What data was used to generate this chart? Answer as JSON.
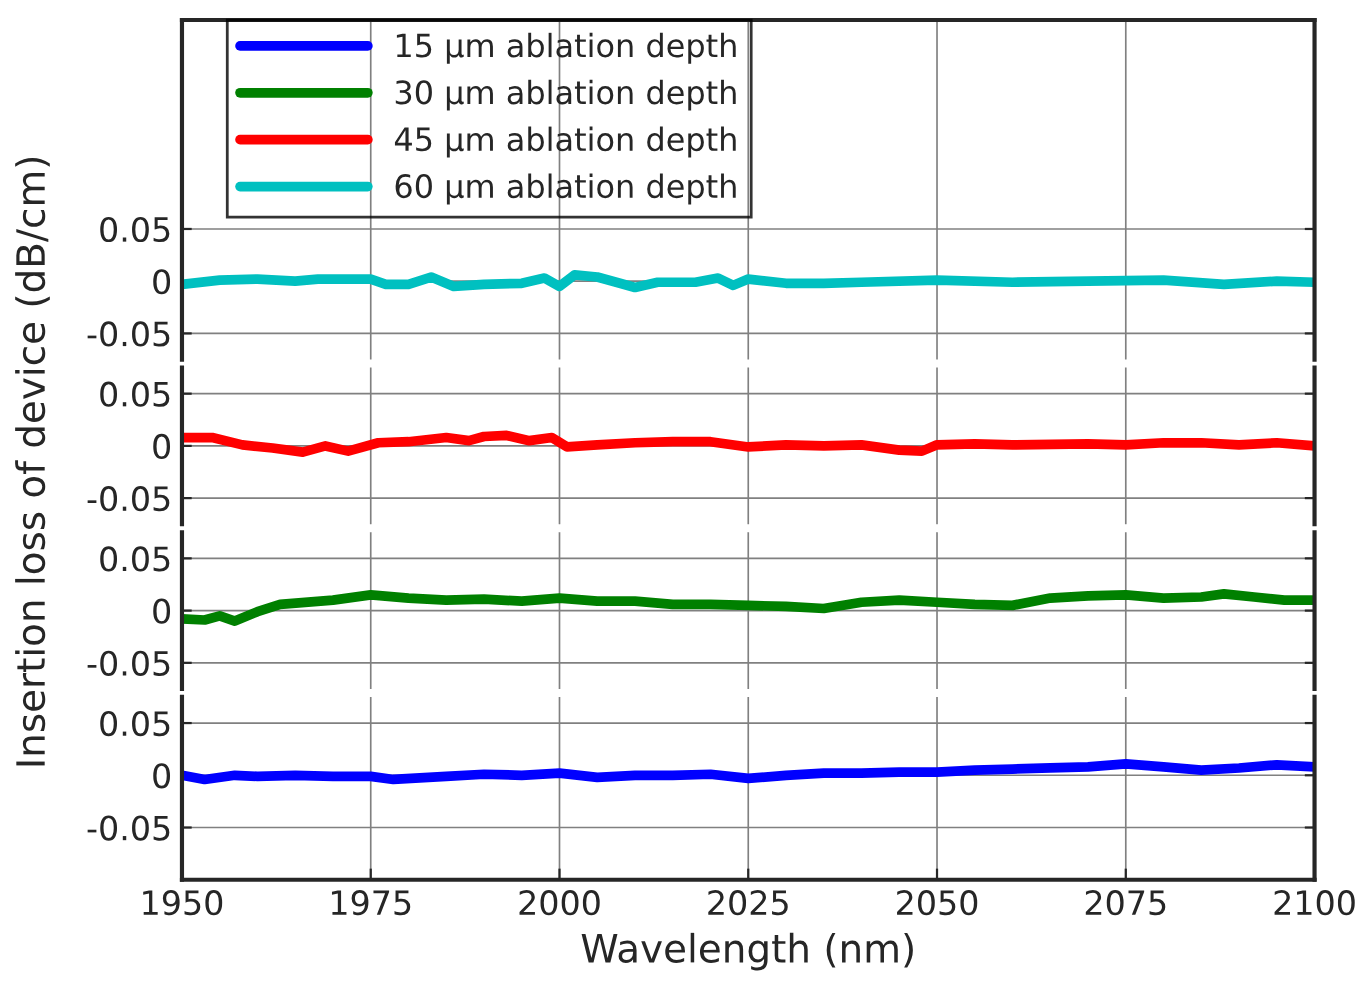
{
  "chart_data": [
    {
      "type": "line",
      "ylabel": "Insertion loss of device (dB/cm)",
      "xlim": [
        1950,
        2100
      ],
      "xticks": [
        1950,
        1975,
        2000,
        2025,
        2050,
        2075,
        2100
      ],
      "ylim": [
        -0.075,
        0.25
      ],
      "yticks": [
        -0.05,
        0,
        0.05
      ],
      "grid": true,
      "legend": "top left",
      "tick_labels": "y",
      "series": [
        {
          "name": "60 μm ablation depth",
          "color": "#00c0c0",
          "x": [
            1950,
            1955,
            1960,
            1965,
            1968,
            1975,
            1977,
            1980,
            1983,
            1986,
            1990,
            1995,
            1998,
            2000,
            2002,
            2005,
            2008,
            2010,
            2013,
            2018,
            2021,
            2023,
            2025,
            2030,
            2035,
            2040,
            2050,
            2060,
            2070,
            2080,
            2088,
            2095,
            2100
          ],
          "values": [
            -0.003,
            0.001,
            0.002,
            0,
            0.002,
            0.002,
            -0.003,
            -0.003,
            0.004,
            -0.005,
            -0.003,
            -0.002,
            0.003,
            -0.005,
            0.006,
            0.004,
            -0.002,
            -0.006,
            -0.001,
            -0.001,
            0.003,
            -0.004,
            0.002,
            -0.002,
            -0.002,
            -0.001,
            0.001,
            -0.001,
            0,
            0.001,
            -0.003,
            0,
            -0.001
          ]
        }
      ]
    },
    {
      "type": "line",
      "xlim": [
        1950,
        2100
      ],
      "xticks": [
        1950,
        1975,
        2000,
        2025,
        2050,
        2075,
        2100
      ],
      "ylim": [
        -0.075,
        0.075
      ],
      "yticks": [
        -0.05,
        0,
        0.05
      ],
      "grid": true,
      "tick_labels": "y",
      "series": [
        {
          "name": "45 μm ablation depth",
          "color": "#ff0000",
          "x": [
            1950,
            1954,
            1958,
            1962,
            1966,
            1969,
            1972,
            1976,
            1980,
            1985,
            1988,
            1990,
            1993,
            1996,
            1999,
            2001,
            2005,
            2010,
            2015,
            2020,
            2025,
            2030,
            2035,
            2040,
            2045,
            2048,
            2050,
            2055,
            2060,
            2070,
            2075,
            2080,
            2085,
            2090,
            2095,
            2100
          ],
          "values": [
            0.008,
            0.008,
            0.001,
            -0.002,
            -0.006,
            0,
            -0.005,
            0.003,
            0.004,
            0.008,
            0.005,
            0.009,
            0.01,
            0.005,
            0.008,
            -0.001,
            0.001,
            0.003,
            0.004,
            0.004,
            -0.001,
            0.001,
            0,
            0.001,
            -0.004,
            -0.005,
            0.001,
            0.002,
            0.001,
            0.002,
            0.001,
            0.003,
            0.003,
            0.001,
            0.003,
            0
          ]
        }
      ]
    },
    {
      "type": "line",
      "xlim": [
        1950,
        2100
      ],
      "xticks": [
        1950,
        1975,
        2000,
        2025,
        2050,
        2075,
        2100
      ],
      "ylim": [
        -0.075,
        0.075
      ],
      "yticks": [
        -0.05,
        0,
        0.05
      ],
      "grid": true,
      "tick_labels": "y",
      "series": [
        {
          "name": "30 μm ablation depth",
          "color": "#008000",
          "x": [
            1950,
            1953,
            1955,
            1957,
            1960,
            1963,
            1970,
            1975,
            1980,
            1985,
            1990,
            1995,
            2000,
            2005,
            2010,
            2015,
            2020,
            2025,
            2030,
            2035,
            2040,
            2045,
            2050,
            2055,
            2060,
            2065,
            2070,
            2075,
            2080,
            2085,
            2088,
            2092,
            2096,
            2100
          ],
          "values": [
            -0.008,
            -0.009,
            -0.005,
            -0.01,
            -0.001,
            0.006,
            0.01,
            0.015,
            0.012,
            0.01,
            0.011,
            0.009,
            0.012,
            0.009,
            0.009,
            0.006,
            0.006,
            0.005,
            0.004,
            0.002,
            0.008,
            0.01,
            0.008,
            0.006,
            0.005,
            0.012,
            0.014,
            0.015,
            0.012,
            0.013,
            0.016,
            0.013,
            0.01,
            0.01
          ]
        }
      ]
    },
    {
      "type": "line",
      "xlabel": "Wavelength (nm)",
      "xlim": [
        1950,
        2100
      ],
      "xticks": [
        1950,
        1975,
        2000,
        2025,
        2050,
        2075,
        2100
      ],
      "ylim": [
        -0.1,
        0.075
      ],
      "yticks": [
        -0.05,
        0,
        0.05
      ],
      "grid": true,
      "series": [
        {
          "name": "15 μm ablation depth",
          "color": "#0000ff",
          "x": [
            1950,
            1953,
            1957,
            1960,
            1965,
            1970,
            1975,
            1978,
            1985,
            1990,
            1995,
            2000,
            2005,
            2010,
            2015,
            2020,
            2025,
            2030,
            2035,
            2040,
            2045,
            2050,
            2055,
            2060,
            2065,
            2070,
            2075,
            2080,
            2085,
            2090,
            2095,
            2100
          ],
          "values": [
            0,
            -0.004,
            0,
            -0.001,
            0,
            -0.001,
            -0.001,
            -0.004,
            -0.001,
            0.001,
            0,
            0.002,
            -0.002,
            0,
            0,
            0.001,
            -0.003,
            0,
            0.002,
            0.002,
            0.003,
            0.003,
            0.005,
            0.006,
            0.007,
            0.008,
            0.011,
            0.008,
            0.005,
            0.007,
            0.01,
            0.008
          ]
        }
      ]
    }
  ]
}
